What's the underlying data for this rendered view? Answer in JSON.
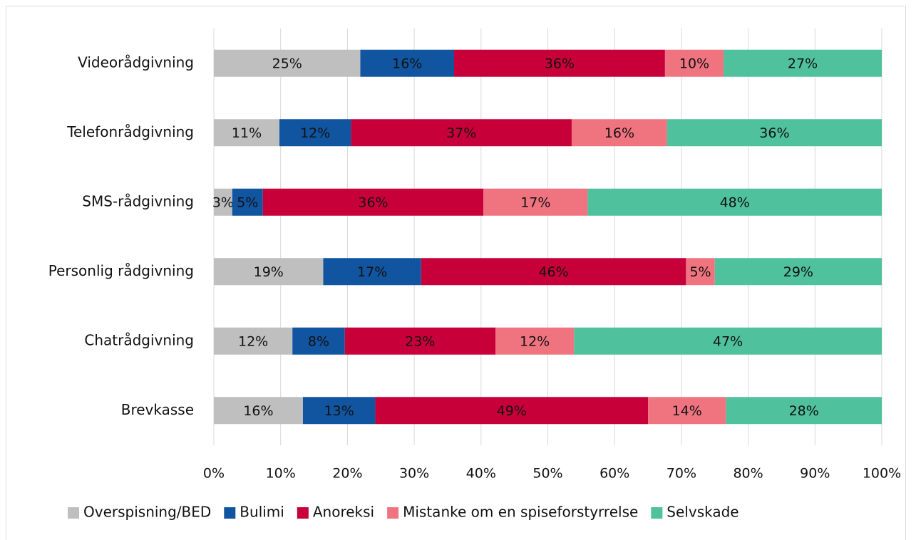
{
  "chart_data": {
    "type": "bar",
    "orientation": "horizontal",
    "stacking": "percent",
    "categories": [
      "Videorådgivning",
      "Telefonrådgivning",
      "SMS-rådgivning",
      "Personlig rådgivning",
      "Chatrådgivning",
      "Brevkasse"
    ],
    "series": [
      {
        "name": "Overspisning/BED",
        "color": "#bfbfbf",
        "values": [
          25,
          11,
          3,
          19,
          12,
          16
        ],
        "value_labels": [
          "25%",
          "11%",
          "3%",
          "19%",
          "12%",
          "16%"
        ]
      },
      {
        "name": "Bulimi",
        "color": "#1155a0",
        "values": [
          16,
          12,
          5,
          17,
          8,
          13
        ],
        "value_labels": [
          "16%",
          "12%",
          "5%",
          "17%",
          "8%",
          "13%"
        ]
      },
      {
        "name": "Anoreksi",
        "color": "#c8003a",
        "values": [
          36,
          37,
          36,
          46,
          23,
          49
        ],
        "value_labels": [
          "36%",
          "37%",
          "36%",
          "46%",
          "23%",
          "49%"
        ]
      },
      {
        "name": "Mistanke om en spiseforstyrrelse",
        "color": "#f07480",
        "values": [
          10,
          16,
          17,
          5,
          12,
          14
        ],
        "value_labels": [
          "10%",
          "16%",
          "17%",
          "5%",
          "12%",
          "14%"
        ]
      },
      {
        "name": "Selvskade",
        "color": "#4fc19c",
        "values": [
          27,
          36,
          48,
          29,
          47,
          28
        ],
        "value_labels": [
          "27%",
          "36%",
          "48%",
          "29%",
          "47%",
          "28%"
        ]
      }
    ],
    "xlim": [
      0,
      100
    ],
    "xticks": [
      {
        "value": 0,
        "label": "0%"
      },
      {
        "value": 10,
        "label": "10%"
      },
      {
        "value": 20,
        "label": "20%"
      },
      {
        "value": 30,
        "label": "30%"
      },
      {
        "value": 40,
        "label": "40%"
      },
      {
        "value": 50,
        "label": "50%"
      },
      {
        "value": 60,
        "label": "60%"
      },
      {
        "value": 70,
        "label": "70%"
      },
      {
        "value": 80,
        "label": "80%"
      },
      {
        "value": 90,
        "label": "90%"
      },
      {
        "value": 100,
        "label": "100%"
      }
    ],
    "grid": true,
    "legend": "bottom"
  }
}
